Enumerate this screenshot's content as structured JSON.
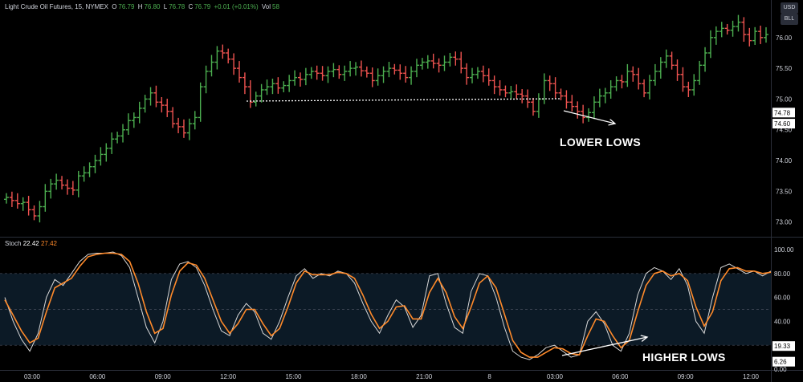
{
  "header": {
    "symbol": "Light Crude Oil Futures, 15, NYMEX",
    "open_label": "O",
    "open": "76.79",
    "high_label": "H",
    "high": "76.80",
    "low_label": "L",
    "low": "76.78",
    "close_label": "C",
    "close": "76.79",
    "change": "+0.01 (+0.01%)",
    "vol_label": "Vol",
    "vol": "58"
  },
  "scale_buttons": {
    "currency": "USD",
    "unit": "BLL"
  },
  "price_axis": {
    "ticks": [
      "73.00",
      "73.50",
      "74.00",
      "74.50",
      "75.00",
      "75.50",
      "76.00"
    ],
    "badges": [
      "74.78",
      "74.60"
    ]
  },
  "stoch": {
    "label": "Stoch",
    "k_value": "22.42",
    "d_value": "27.42",
    "ticks": [
      "0.00",
      "20.00",
      "40.00",
      "60.00",
      "80.00",
      "100.00"
    ],
    "badges": [
      "19.33",
      "6.26"
    ]
  },
  "time_axis": [
    "03:00",
    "06:00",
    "09:00",
    "12:00",
    "15:00",
    "18:00",
    "21:00",
    "8",
    "03:00",
    "06:00",
    "09:00",
    "12:00"
  ],
  "annotations": {
    "lower_lows": "LOWER LOWS",
    "higher_lows": "HIGHER LOWS"
  },
  "colors": {
    "up": "#4caf50",
    "down": "#ef5350",
    "k_line": "#d8d8d8",
    "d_line": "#ff8a2a",
    "band": "#0c1a26"
  },
  "chart_data": [
    {
      "type": "ohlc",
      "title": "Light Crude Oil Futures, 15, NYMEX",
      "ylim": [
        72.8,
        76.35
      ],
      "x": [
        "03:00",
        "06:00",
        "09:00",
        "12:00",
        "15:00",
        "18:00",
        "21:00",
        "8",
        "03:00",
        "06:00",
        "09:00",
        "12:00"
      ],
      "closes": [
        73.4,
        73.35,
        73.3,
        73.32,
        73.2,
        73.1,
        73.25,
        73.5,
        73.62,
        73.68,
        73.6,
        73.55,
        73.52,
        73.75,
        73.8,
        73.9,
        74.0,
        74.1,
        74.2,
        74.35,
        74.4,
        74.5,
        74.65,
        74.7,
        74.85,
        75.0,
        75.1,
        74.95,
        74.9,
        74.8,
        74.6,
        74.55,
        74.45,
        74.6,
        74.7,
        75.2,
        75.45,
        75.6,
        75.78,
        75.75,
        75.65,
        75.5,
        75.35,
        75.2,
        74.95,
        75.05,
        75.15,
        75.2,
        75.25,
        75.18,
        75.22,
        75.3,
        75.35,
        75.32,
        75.4,
        75.45,
        75.42,
        75.38,
        75.45,
        75.48,
        75.4,
        75.45,
        75.5,
        75.52,
        75.46,
        75.42,
        75.3,
        75.38,
        75.45,
        75.5,
        75.47,
        75.42,
        75.35,
        75.45,
        75.55,
        75.6,
        75.62,
        75.58,
        75.55,
        75.6,
        75.68,
        75.65,
        75.5,
        75.35,
        75.4,
        75.45,
        75.38,
        75.3,
        75.2,
        75.15,
        75.1,
        75.12,
        75.08,
        75.05,
        74.95,
        74.8,
        75.0,
        75.3,
        75.25,
        75.1,
        75.05,
        74.95,
        74.88,
        74.8,
        74.7,
        74.78,
        74.95,
        75.05,
        75.1,
        75.2,
        75.3,
        75.28,
        75.45,
        75.4,
        75.25,
        75.1,
        75.3,
        75.45,
        75.6,
        75.7,
        75.55,
        75.4,
        75.2,
        75.15,
        75.3,
        75.55,
        75.75,
        76.0,
        76.1,
        76.15,
        76.12,
        76.18,
        76.25,
        76.05,
        75.95,
        76.1,
        76.0,
        76.05
      ],
      "annotations": [
        "LOWER LOWS"
      ]
    },
    {
      "type": "line",
      "title": "Stoch",
      "ylim": [
        0,
        100
      ],
      "series": [
        {
          "name": "22.42",
          "values": [
            60,
            40,
            25,
            15,
            30,
            60,
            75,
            70,
            80,
            90,
            96,
            97,
            97,
            98,
            95,
            85,
            60,
            35,
            22,
            40,
            75,
            88,
            90,
            85,
            70,
            50,
            32,
            28,
            45,
            55,
            48,
            30,
            25,
            40,
            60,
            78,
            84,
            76,
            80,
            78,
            82,
            80,
            72,
            55,
            40,
            30,
            45,
            58,
            52,
            35,
            45,
            78,
            80,
            55,
            35,
            30,
            65,
            80,
            78,
            60,
            35,
            15,
            10,
            8,
            12,
            18,
            20,
            15,
            10,
            12,
            40,
            48,
            38,
            20,
            15,
            30,
            62,
            80,
            85,
            82,
            75,
            84,
            70,
            40,
            30,
            60,
            85,
            88,
            84,
            80,
            82,
            78,
            82
          ]
        },
        {
          "name": "27.42",
          "values": [
            58,
            45,
            32,
            22,
            26,
            48,
            68,
            72,
            76,
            86,
            94,
            96,
            97,
            97,
            96,
            90,
            72,
            48,
            30,
            34,
            62,
            82,
            89,
            87,
            76,
            58,
            40,
            30,
            38,
            50,
            50,
            38,
            28,
            34,
            52,
            72,
            82,
            79,
            79,
            79,
            81,
            80,
            76,
            62,
            46,
            34,
            40,
            52,
            53,
            42,
            42,
            64,
            76,
            64,
            44,
            34,
            52,
            72,
            78,
            68,
            46,
            24,
            14,
            10,
            10,
            14,
            18,
            17,
            13,
            12,
            28,
            42,
            40,
            28,
            18,
            24,
            48,
            70,
            80,
            82,
            78,
            80,
            74,
            52,
            36,
            48,
            74,
            84,
            85,
            82,
            82,
            80,
            81
          ]
        }
      ],
      "annotations": [
        "HIGHER LOWS"
      ]
    }
  ]
}
